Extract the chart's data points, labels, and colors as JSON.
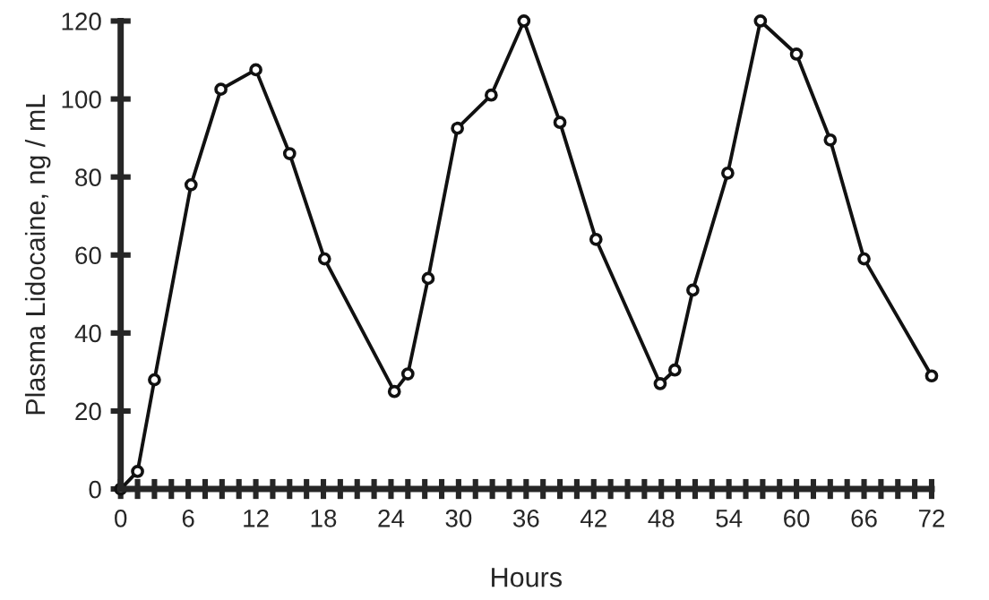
{
  "chart_data": {
    "type": "line",
    "xlabel": "Hours",
    "ylabel": "Plasma Lidocaine, ng / mL",
    "x": [
      0,
      1.5,
      3,
      6.25,
      8.9,
      12,
      15,
      18.1,
      24.3,
      25.5,
      27.3,
      29.9,
      32.9,
      35.8,
      39,
      42.2,
      47.9,
      49.2,
      50.8,
      53.9,
      56.8,
      60,
      63,
      66,
      72
    ],
    "series": [
      {
        "color": "#111111",
        "values": [
          0,
          4.5,
          28,
          78,
          102.5,
          107.5,
          86,
          59,
          25,
          29.5,
          54,
          92.5,
          101,
          120,
          94,
          64,
          27,
          30.5,
          51,
          81,
          120,
          111.5,
          89.5,
          59,
          29
        ]
      }
    ],
    "xlim": [
      0,
      72
    ],
    "xticks": [
      0,
      6,
      12,
      18,
      24,
      30,
      36,
      42,
      48,
      54,
      60,
      66,
      72
    ],
    "ylim": [
      0,
      120
    ],
    "yticks": [
      0,
      20,
      40,
      60,
      80,
      100,
      120
    ],
    "marker": "circle",
    "line_style": "solid",
    "grid": false,
    "legend": false
  }
}
